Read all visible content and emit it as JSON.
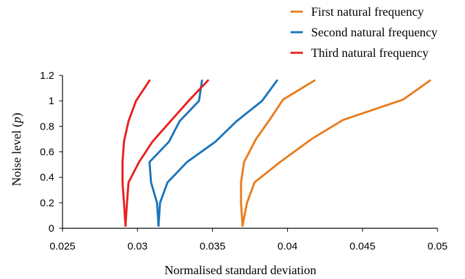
{
  "chart_data": {
    "type": "line",
    "title": "",
    "xlabel": "Normalised standard deviation",
    "ylabel": "Noise level (p)",
    "ylabel_main": "Noise level (",
    "ylabel_var": "p",
    "ylabel_close": ")",
    "xlim": [
      0.025,
      0.05
    ],
    "ylim": [
      0,
      1.2
    ],
    "grid": false,
    "legend_position": "top-right",
    "x_ticks": [
      0.025,
      0.03,
      0.035,
      0.04,
      0.045,
      0.05
    ],
    "x_tick_labels": [
      "0.025",
      "0.03",
      "0.035",
      "0.04",
      "0.045",
      "0.05"
    ],
    "y_ticks": [
      0,
      0.2,
      0.4,
      0.6,
      0.8,
      1,
      1.2
    ],
    "y_tick_labels": [
      "0",
      "0.2",
      "0.4",
      "0.6",
      "0.8",
      "1",
      "1.2"
    ],
    "series": [
      {
        "name": "First natural frequency",
        "color": "#E87D1E",
        "lines": [
          [
            [
              0.037,
              0.02
            ],
            [
              0.0369,
              0.2
            ],
            [
              0.0369,
              0.36
            ],
            [
              0.0371,
              0.52
            ],
            [
              0.0379,
              0.7
            ],
            [
              0.0388,
              0.85
            ],
            [
              0.0397,
              1.01
            ],
            [
              0.0418,
              1.16
            ]
          ],
          [
            [
              0.037,
              0.02
            ],
            [
              0.0373,
              0.2
            ],
            [
              0.0378,
              0.36
            ],
            [
              0.0395,
              0.52
            ],
            [
              0.0416,
              0.7
            ],
            [
              0.0437,
              0.85
            ],
            [
              0.0477,
              1.01
            ],
            [
              0.0495,
              1.16
            ]
          ]
        ]
      },
      {
        "name": "Second natural frequency",
        "color": "#1B75BC",
        "lines": [
          [
            [
              0.0314,
              0.02
            ],
            [
              0.0313,
              0.2
            ],
            [
              0.0309,
              0.36
            ],
            [
              0.0308,
              0.52
            ],
            [
              0.0321,
              0.68
            ],
            [
              0.0328,
              0.84
            ],
            [
              0.0341,
              1.0
            ],
            [
              0.0343,
              1.16
            ]
          ],
          [
            [
              0.0314,
              0.02
            ],
            [
              0.0315,
              0.2
            ],
            [
              0.032,
              0.36
            ],
            [
              0.0333,
              0.52
            ],
            [
              0.0352,
              0.68
            ],
            [
              0.0366,
              0.84
            ],
            [
              0.0383,
              1.0
            ],
            [
              0.0393,
              1.16
            ]
          ]
        ]
      },
      {
        "name": "Third natural frequency",
        "color": "#E8201E",
        "lines": [
          [
            [
              0.0292,
              0.02
            ],
            [
              0.0291,
              0.2
            ],
            [
              0.029,
              0.36
            ],
            [
              0.029,
              0.52
            ],
            [
              0.0291,
              0.68
            ],
            [
              0.0294,
              0.84
            ],
            [
              0.0299,
              1.0
            ],
            [
              0.0308,
              1.16
            ]
          ],
          [
            [
              0.0292,
              0.02
            ],
            [
              0.0293,
              0.2
            ],
            [
              0.0294,
              0.36
            ],
            [
              0.0301,
              0.52
            ],
            [
              0.031,
              0.68
            ],
            [
              0.0322,
              0.84
            ],
            [
              0.0334,
              1.0
            ],
            [
              0.0347,
              1.16
            ]
          ]
        ]
      }
    ]
  }
}
